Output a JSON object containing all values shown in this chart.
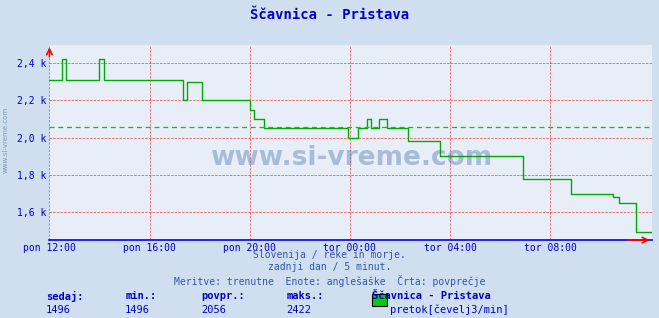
{
  "title": "Ščavnica - Pristava",
  "bg_color": "#d0dff0",
  "plot_bg_color": "#e8eef8",
  "line_color": "#00aa00",
  "avg_line_color": "#00cc00",
  "avg_value": 2056,
  "ymin": 1450,
  "ymax": 2500,
  "yticks": [
    1600,
    1800,
    2000,
    2200,
    2400
  ],
  "ytick_labels": [
    "1,6 k",
    "1,8 k",
    "2,0 k",
    "2,2 k",
    "2,4 k"
  ],
  "xlabel_ticks": [
    "pon 12:00",
    "pon 16:00",
    "pon 20:00",
    "tor 00:00",
    "tor 04:00",
    "tor 08:00"
  ],
  "xtick_positions": [
    0,
    48,
    96,
    144,
    192,
    240
  ],
  "footer_line1": "Slovenija / reke in morje.",
  "footer_line2": "zadnji dan / 5 minut.",
  "footer_line3": "Meritve: trenutne  Enote: anglešaške  Črta: povprečje",
  "sedaj": 1496,
  "min_val": 1496,
  "povpr": 2056,
  "maks": 2422,
  "station_name": "Ščavnica - Pristava",
  "legend_label": "pretok[čevelj3/min]",
  "text_color": "#0000cc",
  "subtitle_color": "#3355aa",
  "watermark": "www.si-vreme.com",
  "n_points": 289,
  "data_values": [
    2310,
    2310,
    2310,
    2310,
    2310,
    2310,
    2422,
    2422,
    2310,
    2310,
    2310,
    2310,
    2310,
    2310,
    2310,
    2310,
    2310,
    2310,
    2310,
    2310,
    2310,
    2310,
    2310,
    2310,
    2422,
    2422,
    2310,
    2310,
    2310,
    2310,
    2310,
    2310,
    2310,
    2310,
    2310,
    2310,
    2310,
    2310,
    2310,
    2310,
    2310,
    2310,
    2310,
    2310,
    2310,
    2310,
    2310,
    2310,
    2310,
    2310,
    2310,
    2310,
    2310,
    2310,
    2310,
    2310,
    2310,
    2310,
    2310,
    2310,
    2310,
    2310,
    2310,
    2310,
    2200,
    2200,
    2300,
    2300,
    2300,
    2300,
    2300,
    2300,
    2300,
    2200,
    2200,
    2200,
    2200,
    2200,
    2200,
    2200,
    2200,
    2200,
    2200,
    2200,
    2200,
    2200,
    2200,
    2200,
    2200,
    2200,
    2200,
    2200,
    2200,
    2200,
    2200,
    2200,
    2150,
    2150,
    2100,
    2100,
    2100,
    2100,
    2100,
    2050,
    2050,
    2050,
    2050,
    2050,
    2050,
    2050,
    2050,
    2050,
    2050,
    2050,
    2050,
    2050,
    2050,
    2050,
    2050,
    2050,
    2050,
    2050,
    2050,
    2050,
    2050,
    2050,
    2050,
    2050,
    2050,
    2050,
    2050,
    2050,
    2050,
    2050,
    2050,
    2050,
    2050,
    2050,
    2050,
    2050,
    2050,
    2050,
    2050,
    2000,
    2000,
    2000,
    2000,
    2000,
    2050,
    2050,
    2050,
    2050,
    2100,
    2100,
    2050,
    2050,
    2050,
    2050,
    2100,
    2100,
    2100,
    2100,
    2050,
    2050,
    2050,
    2050,
    2050,
    2050,
    2050,
    2050,
    2050,
    2050,
    1980,
    1980,
    1980,
    1980,
    1980,
    1980,
    1980,
    1980,
    1980,
    1980,
    1980,
    1980,
    1980,
    1980,
    1980,
    1900,
    1900,
    1900,
    1900,
    1900,
    1900,
    1900,
    1900,
    1900,
    1900,
    1900,
    1900,
    1900,
    1900,
    1900,
    1900,
    1900,
    1900,
    1900,
    1900,
    1900,
    1900,
    1900,
    1900,
    1900,
    1900,
    1900,
    1900,
    1900,
    1900,
    1900,
    1900,
    1900,
    1900,
    1900,
    1900,
    1900,
    1900,
    1900,
    1900,
    1780,
    1780,
    1780,
    1780,
    1780,
    1780,
    1780,
    1780,
    1780,
    1780,
    1780,
    1780,
    1780,
    1780,
    1780,
    1780,
    1780,
    1780,
    1780,
    1780,
    1780,
    1780,
    1780,
    1700,
    1700,
    1700,
    1700,
    1700,
    1700,
    1700,
    1700,
    1700,
    1700,
    1700,
    1700,
    1700,
    1700,
    1700,
    1700,
    1700,
    1700,
    1700,
    1700,
    1680,
    1680,
    1680,
    1650,
    1650,
    1650,
    1650,
    1650,
    1650,
    1650,
    1650,
    1496,
    1496,
    1496,
    1496,
    1496,
    1496,
    1496,
    1496,
    1496
  ]
}
